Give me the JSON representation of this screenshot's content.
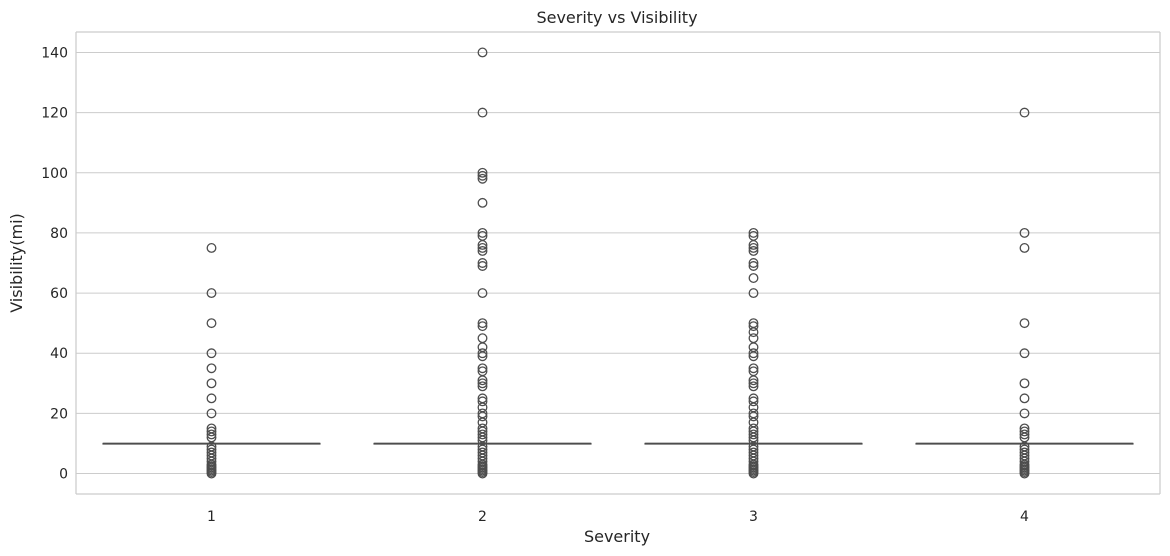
{
  "chart_data": {
    "type": "box",
    "title": "Severity vs Visibility",
    "xlabel": "Severity",
    "ylabel": "Visibility(mi)",
    "categories": [
      "1",
      "2",
      "3",
      "4"
    ],
    "yticks": [
      0,
      20,
      40,
      60,
      80,
      100,
      120,
      140
    ],
    "ylim": [
      -6.8,
      146.8
    ],
    "grid": true,
    "colors": {
      "box": "#4c72b0",
      "line": "#4d4d4d",
      "grid": "#cccccc",
      "spine": "#cccccc"
    },
    "boxes": [
      {
        "category": "1",
        "q1": 10,
        "median": 10,
        "q3": 10,
        "whisker_low": 10,
        "whisker_high": 10,
        "outliers": [
          75,
          60,
          50,
          40,
          35,
          30,
          25,
          20,
          15,
          14,
          13,
          12,
          9,
          8,
          7,
          6,
          5,
          4,
          3,
          2.5,
          2,
          1.5,
          1,
          0.5,
          0
        ]
      },
      {
        "category": "2",
        "q1": 10,
        "median": 10,
        "q3": 10,
        "whisker_low": 10,
        "whisker_high": 10,
        "outliers": [
          140,
          120,
          100,
          99,
          98,
          90,
          80,
          79,
          76,
          75,
          74,
          70,
          69,
          60,
          50,
          49,
          45,
          42,
          40,
          39,
          35,
          34,
          31,
          30,
          29,
          25,
          24,
          22,
          20,
          19,
          17,
          15,
          14,
          13,
          12,
          11,
          9,
          8,
          7,
          6,
          5,
          4,
          3,
          2.5,
          2,
          1.5,
          1,
          0.5,
          0
        ]
      },
      {
        "category": "3",
        "q1": 10,
        "median": 10,
        "q3": 10,
        "whisker_low": 10,
        "whisker_high": 10,
        "outliers": [
          80,
          79,
          76,
          75,
          74,
          70,
          69,
          65,
          60,
          50,
          49,
          47,
          45,
          42,
          40,
          39,
          35,
          34,
          31,
          30,
          29,
          25,
          24,
          22,
          20,
          19,
          17,
          15,
          14,
          13,
          12,
          11,
          9,
          8,
          7,
          6,
          5,
          4,
          3,
          2.5,
          2,
          1.5,
          1,
          0.5,
          0
        ]
      },
      {
        "category": "4",
        "q1": 10,
        "median": 10,
        "q3": 10,
        "whisker_low": 10,
        "whisker_high": 10,
        "outliers": [
          120,
          80,
          75,
          50,
          40,
          30,
          25,
          20,
          15,
          14,
          13,
          12,
          9,
          8,
          7,
          6,
          5,
          4,
          3,
          2.5,
          2,
          1.5,
          1,
          0.5,
          0
        ]
      }
    ]
  }
}
